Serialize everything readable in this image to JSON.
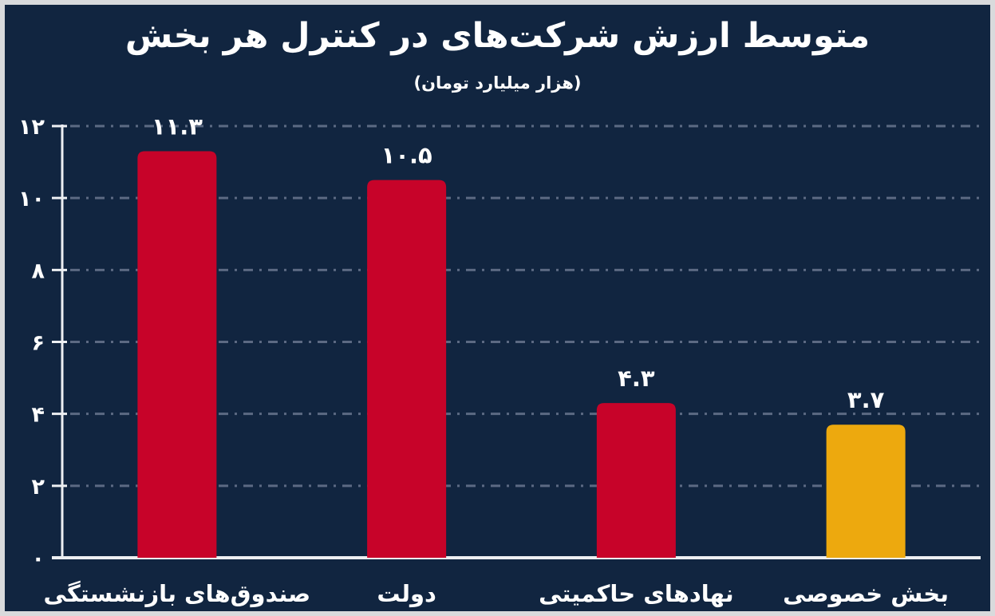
{
  "header": {
    "title": "متوسط ارزش شرکت‌های در کنترل هر بخش",
    "subtitle": "(هزار میلیارد تومان)"
  },
  "colors": {
    "background": "#112540",
    "frame_border": "#D9DADC",
    "bar_red": "#C70329",
    "bar_yellow": "#EDA90E",
    "gridline": "#5C6A83",
    "axis": "#EDEFF2",
    "text": "#FFFFFF"
  },
  "chart_data": {
    "type": "bar",
    "title": "متوسط ارزش شرکت‌های در کنترل هر بخش",
    "subtitle": "(هزار میلیارد تومان)",
    "categories": [
      "صندوق‌های بازنشستگی",
      "دولت",
      "نهادهای حاکمیتی",
      "بخش خصوصی"
    ],
    "category_slugs": [
      "pension-funds",
      "government",
      "sovereign-institutions",
      "private-sector"
    ],
    "values": [
      11.3,
      10.5,
      4.3,
      3.7
    ],
    "value_labels": [
      "۱۱.۳",
      "۱۰.۵",
      "۴.۳",
      "۳.۷"
    ],
    "bar_colors": [
      "#C70329",
      "#C70329",
      "#C70329",
      "#EDA90E"
    ],
    "xlabel": "",
    "ylabel": "",
    "ylim": [
      0,
      12
    ],
    "yticks": [
      0,
      2,
      4,
      6,
      8,
      10,
      12
    ],
    "ytick_labels": [
      "۰",
      "۲",
      "۴",
      "۶",
      "۸",
      "۱۰",
      "۱۲"
    ],
    "grid": "horizontal-dash-dot",
    "legend": "none",
    "text_direction": "rtl"
  }
}
